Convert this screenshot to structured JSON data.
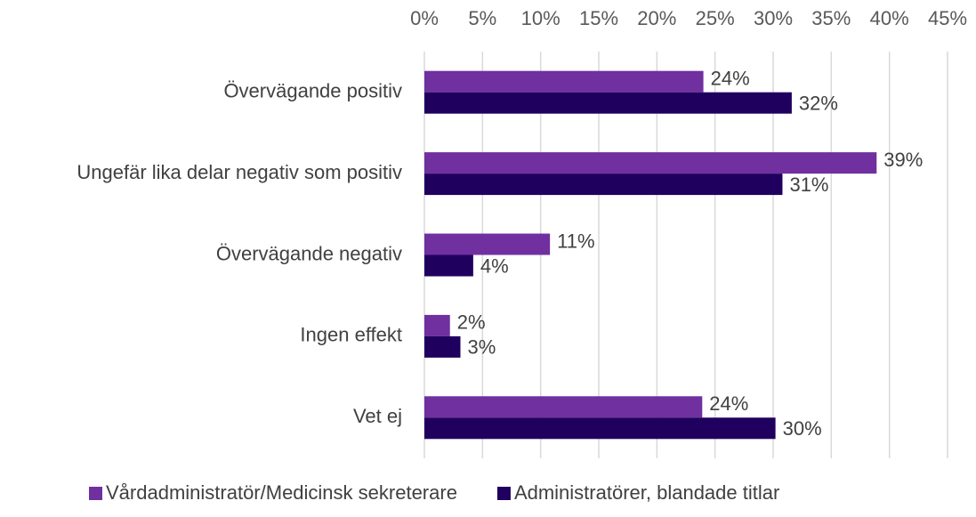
{
  "chart_data": {
    "type": "bar",
    "orientation": "horizontal",
    "categories": [
      "Övervägande positiv",
      "Ungefär lika delar negativ som positiv",
      "Övervägande negativ",
      "Ingen effekt",
      "Vet ej"
    ],
    "series": [
      {
        "name": "Vårdadministratör/Medicinsk sekreterare",
        "color": "#7030a0",
        "values": [
          24,
          38.9,
          10.8,
          2.2,
          23.9
        ],
        "value_labels": [
          "24%",
          "39%",
          "11%",
          "2%",
          "24%"
        ]
      },
      {
        "name": "Administratörer, blandade titlar",
        "color": "#20005e",
        "values": [
          31.6,
          30.8,
          4.2,
          3.1,
          30.2
        ],
        "value_labels": [
          "32%",
          "31%",
          "4%",
          "3%",
          "30%"
        ]
      }
    ],
    "xlim": [
      0,
      45
    ],
    "xticks": [
      {
        "value": 0,
        "label": "0%"
      },
      {
        "value": 5,
        "label": "5%"
      },
      {
        "value": 10,
        "label": "10%"
      },
      {
        "value": 15,
        "label": "15%"
      },
      {
        "value": 20,
        "label": "20%"
      },
      {
        "value": 25,
        "label": "25%"
      },
      {
        "value": 30,
        "label": "30%"
      },
      {
        "value": 35,
        "label": "35%"
      },
      {
        "value": 40,
        "label": "40%"
      },
      {
        "value": 45,
        "label": "45%"
      }
    ],
    "grid": true,
    "legend": "bottom"
  }
}
